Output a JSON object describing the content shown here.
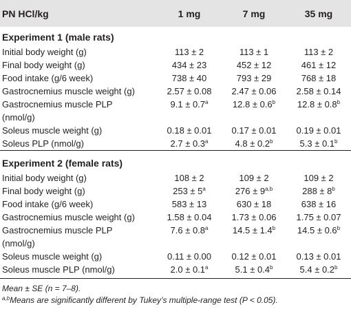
{
  "header": {
    "label": "PN HCl/kg",
    "doses": [
      "1 mg",
      "7 mg",
      "35 mg"
    ]
  },
  "sections": [
    {
      "title": "Experiment 1 (male rats)",
      "rows": [
        {
          "label": "Initial body weight (g)",
          "label2": "",
          "values": [
            {
              "v": "113 ± 2",
              "s": ""
            },
            {
              "v": "113 ± 1",
              "s": ""
            },
            {
              "v": "113 ± 2",
              "s": ""
            }
          ]
        },
        {
          "label": "Final body weight (g)",
          "label2": "",
          "values": [
            {
              "v": "434 ± 23",
              "s": ""
            },
            {
              "v": "452 ± 12",
              "s": ""
            },
            {
              "v": "461 ± 12",
              "s": ""
            }
          ]
        },
        {
          "label": "Food intake (g/6 week)",
          "label2": "",
          "values": [
            {
              "v": "738 ± 40",
              "s": ""
            },
            {
              "v": "793 ± 29",
              "s": ""
            },
            {
              "v": "768 ± 18",
              "s": ""
            }
          ]
        },
        {
          "label": "Gastrocnemius muscle weight (g)",
          "label2": "",
          "values": [
            {
              "v": "2.57 ± 0.08",
              "s": ""
            },
            {
              "v": "2.47 ± 0.06",
              "s": ""
            },
            {
              "v": "2.58 ± 0.14",
              "s": ""
            }
          ]
        },
        {
          "label": "Gastrocnemius muscle PLP",
          "label2": "(nmol/g)",
          "values": [
            {
              "v": "9.1 ± 0.7",
              "s": "a"
            },
            {
              "v": "12.8 ± 0.6",
              "s": "b"
            },
            {
              "v": "12.8 ± 0.8",
              "s": "b"
            }
          ]
        },
        {
          "label": "Soleus muscle weight (g)",
          "label2": "",
          "values": [
            {
              "v": "0.18 ± 0.01",
              "s": ""
            },
            {
              "v": "0.17 ± 0.01",
              "s": ""
            },
            {
              "v": "0.19 ± 0.01",
              "s": ""
            }
          ]
        },
        {
          "label": "Soleus PLP (nmol/g)",
          "label2": "",
          "values": [
            {
              "v": "2.7 ± 0.3",
              "s": "a"
            },
            {
              "v": "4.8 ± 0.2",
              "s": "b"
            },
            {
              "v": "5.3 ± 0.1",
              "s": "b"
            }
          ]
        }
      ]
    },
    {
      "title": "Experiment 2 (female rats)",
      "rows": [
        {
          "label": "Initial body weight (g)",
          "label2": "",
          "values": [
            {
              "v": "108 ± 2",
              "s": ""
            },
            {
              "v": "109 ± 2",
              "s": ""
            },
            {
              "v": "109 ± 2",
              "s": ""
            }
          ]
        },
        {
          "label": "Final body weight (g)",
          "label2": "",
          "values": [
            {
              "v": "253 ± 5",
              "s": "a"
            },
            {
              "v": "276 ± 9",
              "s": "a,b"
            },
            {
              "v": "288 ± 8",
              "s": "b"
            }
          ]
        },
        {
          "label": "Food intake (g/6 week)",
          "label2": "",
          "values": [
            {
              "v": "583 ± 13",
              "s": ""
            },
            {
              "v": "630 ± 18",
              "s": ""
            },
            {
              "v": "638 ± 16",
              "s": ""
            }
          ]
        },
        {
          "label": "Gastrocnemius muscle weight (g)",
          "label2": "",
          "values": [
            {
              "v": "1.58 ± 0.04",
              "s": ""
            },
            {
              "v": "1.73 ± 0.06",
              "s": ""
            },
            {
              "v": "1.75 ± 0.07",
              "s": ""
            }
          ]
        },
        {
          "label": "Gastrocnemius muscle PLP",
          "label2": "(nmol/g)",
          "values": [
            {
              "v": "7.6 ± 0.8",
              "s": "a"
            },
            {
              "v": "14.5 ± 1.4",
              "s": "b"
            },
            {
              "v": "14.5 ± 0.6",
              "s": "b"
            }
          ]
        },
        {
          "label": "Soleus muscle weight (g)",
          "label2": "",
          "values": [
            {
              "v": "0.11 ± 0.00",
              "s": ""
            },
            {
              "v": "0.12 ± 0.01",
              "s": ""
            },
            {
              "v": "0.13 ± 0.01",
              "s": ""
            }
          ]
        },
        {
          "label": "Soleus muscle PLP (nmol/g)",
          "label2": "",
          "values": [
            {
              "v": "2.0 ± 0.1",
              "s": "a"
            },
            {
              "v": "5.1 ± 0.4",
              "s": "b"
            },
            {
              "v": "5.4 ± 0.2",
              "s": "b"
            }
          ]
        }
      ]
    }
  ],
  "notes": {
    "n1": "Mean ± SE (n = 7–8).",
    "n2_sup": "a,b",
    "n2_text": "Means are significantly different by Tukey’s multiple-range test (P < 0.05)."
  }
}
